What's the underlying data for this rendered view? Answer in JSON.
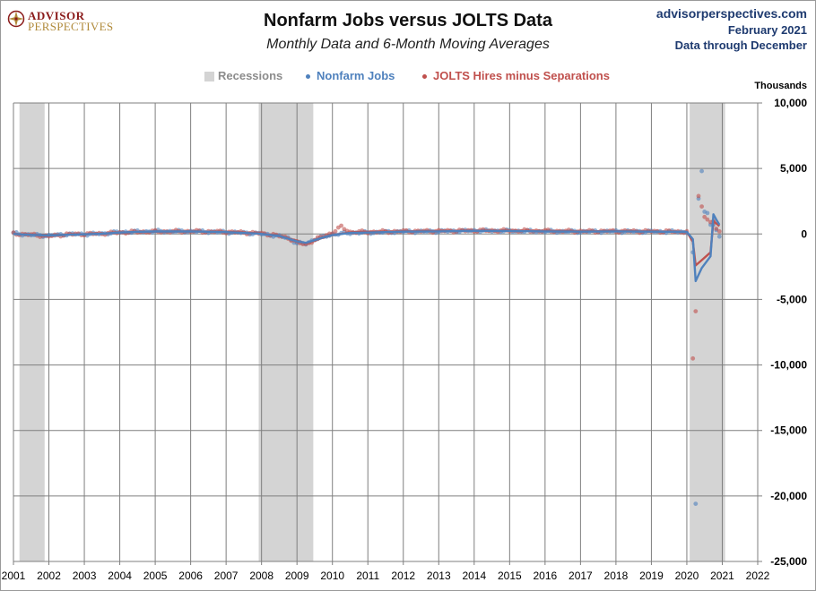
{
  "header": {
    "logo_line1": "ADVISOR",
    "logo_line2": "PERSPECTIVES",
    "title": "Nonfarm Jobs versus JOLTS Data",
    "subtitle": "Monthly Data and 6-Month Moving Averages",
    "source_url": "advisorperspectives.com",
    "source_date": "February 2021",
    "source_through": "Data through December"
  },
  "chart_data": {
    "type": "scatter",
    "title": "Nonfarm Jobs versus JOLTS Data",
    "subtitle": "Monthly Data and 6-Month Moving Averages",
    "ylabel": "Thousands",
    "xlim": [
      2001,
      2022
    ],
    "ylim": [
      -25000,
      10000
    ],
    "x_ticks": [
      "2001",
      "2002",
      "2003",
      "2004",
      "2005",
      "2006",
      "2007",
      "2008",
      "2009",
      "2010",
      "2011",
      "2012",
      "2013",
      "2014",
      "2015",
      "2016",
      "2017",
      "2018",
      "2019",
      "2020",
      "2021",
      "2022"
    ],
    "y_ticks": [
      "10,000",
      "5,000",
      "0",
      "-5,000",
      "-10,000",
      "-15,000",
      "-20,000",
      "-25,000"
    ],
    "y_tick_values": [
      10000,
      5000,
      0,
      -5000,
      -10000,
      -15000,
      -20000,
      -25000
    ],
    "grid": true,
    "legend_position": "top-center",
    "legend": [
      "Recessions",
      "Nonfarm Jobs",
      "JOLTS Hires minus Separations"
    ],
    "recessions": [
      {
        "start": 2001.17,
        "end": 2001.88
      },
      {
        "start": 2007.92,
        "end": 2009.46
      },
      {
        "start": 2020.08,
        "end": 2021.08
      }
    ],
    "series": [
      {
        "name": "Nonfarm Jobs",
        "color": "#4f81bd",
        "anchors": [
          [
            2001.0,
            50
          ],
          [
            2001.5,
            -80
          ],
          [
            2002.0,
            -130
          ],
          [
            2002.5,
            -20
          ],
          [
            2003.0,
            -20
          ],
          [
            2003.5,
            20
          ],
          [
            2004.0,
            140
          ],
          [
            2004.5,
            170
          ],
          [
            2005.0,
            200
          ],
          [
            2006.0,
            200
          ],
          [
            2007.0,
            140
          ],
          [
            2007.9,
            30
          ],
          [
            2008.3,
            -90
          ],
          [
            2008.75,
            -300
          ],
          [
            2009.0,
            -700
          ],
          [
            2009.25,
            -750
          ],
          [
            2009.5,
            -400
          ],
          [
            2009.75,
            -230
          ],
          [
            2010.0,
            -30
          ],
          [
            2010.5,
            80
          ],
          [
            2011.0,
            100
          ],
          [
            2012.0,
            180
          ],
          [
            2013.0,
            200
          ],
          [
            2014.0,
            250
          ],
          [
            2015.0,
            230
          ],
          [
            2016.0,
            200
          ],
          [
            2017.0,
            180
          ],
          [
            2018.0,
            200
          ],
          [
            2019.0,
            180
          ],
          [
            2020.0,
            160
          ],
          [
            2020.08,
            100
          ]
        ],
        "tail": [
          [
            2020.17,
            -1400
          ],
          [
            2020.25,
            -20600
          ],
          [
            2020.33,
            2700
          ],
          [
            2020.42,
            4800
          ],
          [
            2020.5,
            1700
          ],
          [
            2020.58,
            1600
          ],
          [
            2020.67,
            700
          ],
          [
            2020.75,
            700
          ],
          [
            2020.83,
            300
          ],
          [
            2020.92,
            -200
          ]
        ],
        "ma": [
          [
            2001.0,
            0
          ],
          [
            2001.5,
            -70
          ],
          [
            2002.0,
            -120
          ],
          [
            2002.5,
            -60
          ],
          [
            2003.0,
            -30
          ],
          [
            2003.5,
            20
          ],
          [
            2004.0,
            110
          ],
          [
            2004.5,
            160
          ],
          [
            2005.0,
            190
          ],
          [
            2006.0,
            195
          ],
          [
            2007.0,
            140
          ],
          [
            2007.9,
            30
          ],
          [
            2008.5,
            -150
          ],
          [
            2009.0,
            -560
          ],
          [
            2009.25,
            -680
          ],
          [
            2009.5,
            -470
          ],
          [
            2009.75,
            -260
          ],
          [
            2010.0,
            -90
          ],
          [
            2010.5,
            80
          ],
          [
            2011.0,
            110
          ],
          [
            2012.0,
            180
          ],
          [
            2013.0,
            200
          ],
          [
            2014.0,
            240
          ],
          [
            2015.0,
            230
          ],
          [
            2016.0,
            200
          ],
          [
            2017.0,
            180
          ],
          [
            2018.0,
            200
          ],
          [
            2019.0,
            180
          ],
          [
            2020.0,
            160
          ],
          [
            2020.17,
            -400
          ],
          [
            2020.25,
            -3600
          ],
          [
            2020.42,
            -2600
          ],
          [
            2020.67,
            -1700
          ],
          [
            2020.75,
            1500
          ],
          [
            2020.83,
            1100
          ],
          [
            2020.92,
            700
          ]
        ]
      },
      {
        "name": "JOLTS Hires minus Separations",
        "color": "#c0504d",
        "anchors": [
          [
            2001.0,
            30
          ],
          [
            2001.5,
            -60
          ],
          [
            2002.0,
            -180
          ],
          [
            2002.5,
            -30
          ],
          [
            2003.0,
            -10
          ],
          [
            2003.5,
            30
          ],
          [
            2004.0,
            110
          ],
          [
            2004.5,
            160
          ],
          [
            2005.0,
            180
          ],
          [
            2006.0,
            200
          ],
          [
            2007.0,
            160
          ],
          [
            2007.9,
            60
          ],
          [
            2008.3,
            -50
          ],
          [
            2008.75,
            -300
          ],
          [
            2009.0,
            -650
          ],
          [
            2009.25,
            -800
          ],
          [
            2009.5,
            -450
          ],
          [
            2009.75,
            -180
          ],
          [
            2010.0,
            100
          ],
          [
            2010.25,
            550
          ],
          [
            2010.5,
            150
          ],
          [
            2011.0,
            150
          ],
          [
            2012.0,
            200
          ],
          [
            2013.0,
            220
          ],
          [
            2014.0,
            260
          ],
          [
            2015.0,
            250
          ],
          [
            2016.0,
            230
          ],
          [
            2017.0,
            200
          ],
          [
            2018.0,
            210
          ],
          [
            2019.0,
            200
          ],
          [
            2020.0,
            170
          ],
          [
            2020.08,
            100
          ]
        ],
        "tail": [
          [
            2020.17,
            -9500
          ],
          [
            2020.25,
            -5900
          ],
          [
            2020.33,
            2900
          ],
          [
            2020.42,
            2100
          ],
          [
            2020.5,
            1300
          ],
          [
            2020.58,
            1100
          ],
          [
            2020.67,
            900
          ],
          [
            2020.75,
            1000
          ],
          [
            2020.83,
            400
          ],
          [
            2020.92,
            200
          ]
        ],
        "ma": [
          [
            2001.0,
            0
          ],
          [
            2001.5,
            -60
          ],
          [
            2002.0,
            -160
          ],
          [
            2002.5,
            -60
          ],
          [
            2003.0,
            -20
          ],
          [
            2003.5,
            30
          ],
          [
            2004.0,
            100
          ],
          [
            2004.5,
            150
          ],
          [
            2005.0,
            180
          ],
          [
            2006.0,
            200
          ],
          [
            2007.0,
            160
          ],
          [
            2007.9,
            60
          ],
          [
            2008.5,
            -150
          ],
          [
            2009.0,
            -520
          ],
          [
            2009.25,
            -720
          ],
          [
            2009.5,
            -520
          ],
          [
            2009.75,
            -260
          ],
          [
            2010.0,
            -100
          ],
          [
            2010.5,
            120
          ],
          [
            2011.0,
            160
          ],
          [
            2012.0,
            200
          ],
          [
            2013.0,
            220
          ],
          [
            2014.0,
            250
          ],
          [
            2015.0,
            250
          ],
          [
            2016.0,
            230
          ],
          [
            2017.0,
            200
          ],
          [
            2018.0,
            210
          ],
          [
            2019.0,
            200
          ],
          [
            2020.0,
            170
          ],
          [
            2020.17,
            -600
          ],
          [
            2020.25,
            -2400
          ],
          [
            2020.42,
            -2000
          ],
          [
            2020.67,
            -1400
          ],
          [
            2020.75,
            1000
          ],
          [
            2020.83,
            800
          ],
          [
            2020.92,
            600
          ]
        ]
      }
    ],
    "colors": {
      "recession": "#d4d4d4",
      "grid": "#7f7f7f",
      "legend_recessions": "#8c8c8c"
    }
  }
}
